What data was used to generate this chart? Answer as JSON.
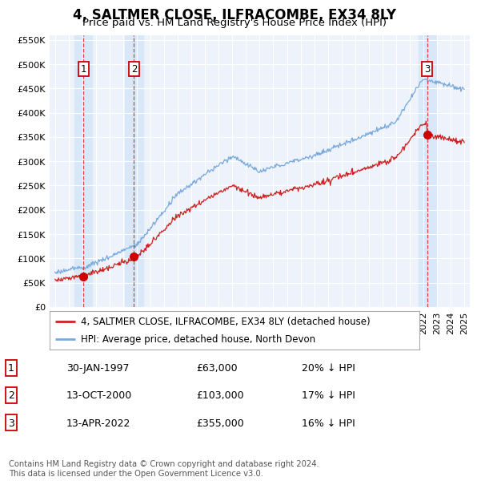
{
  "title": "4, SALTMER CLOSE, ILFRACOMBE, EX34 8LY",
  "subtitle": "Price paid vs. HM Land Registry's House Price Index (HPI)",
  "ylim": [
    0,
    560000
  ],
  "yticks": [
    0,
    50000,
    100000,
    150000,
    200000,
    250000,
    300000,
    350000,
    400000,
    450000,
    500000,
    550000
  ],
  "ytick_labels": [
    "£0",
    "£50K",
    "£100K",
    "£150K",
    "£200K",
    "£250K",
    "£300K",
    "£350K",
    "£400K",
    "£450K",
    "£500K",
    "£550K"
  ],
  "xlim_start": 1994.6,
  "xlim_end": 2025.4,
  "background_color": "#ffffff",
  "plot_bg_color": "#edf2fb",
  "grid_color": "#ffffff",
  "hpi_line_color": "#7aaadd",
  "price_line_color": "#cc2222",
  "sale_marker_color": "#cc0000",
  "sale_marker_size": 7,
  "vline_color": "#dd2222",
  "highlight_bg": "#d8e8f8",
  "transactions": [
    {
      "id": 1,
      "date_str": "30-JAN-1997",
      "year": 1997.08,
      "price": 63000,
      "pct": "20%",
      "dir": "↓"
    },
    {
      "id": 2,
      "date_str": "13-OCT-2000",
      "year": 2000.79,
      "price": 103000,
      "pct": "17%",
      "dir": "↓"
    },
    {
      "id": 3,
      "date_str": "13-APR-2022",
      "year": 2022.28,
      "price": 355000,
      "pct": "16%",
      "dir": "↓"
    }
  ],
  "legend_label_price": "4, SALTMER CLOSE, ILFRACOMBE, EX34 8LY (detached house)",
  "legend_label_hpi": "HPI: Average price, detached house, North Devon",
  "footnote": "Contains HM Land Registry data © Crown copyright and database right 2024.\nThis data is licensed under the Open Government Licence v3.0.",
  "title_fontsize": 12,
  "subtitle_fontsize": 9.5,
  "tick_fontsize": 8,
  "legend_fontsize": 8.5,
  "table_fontsize": 9
}
